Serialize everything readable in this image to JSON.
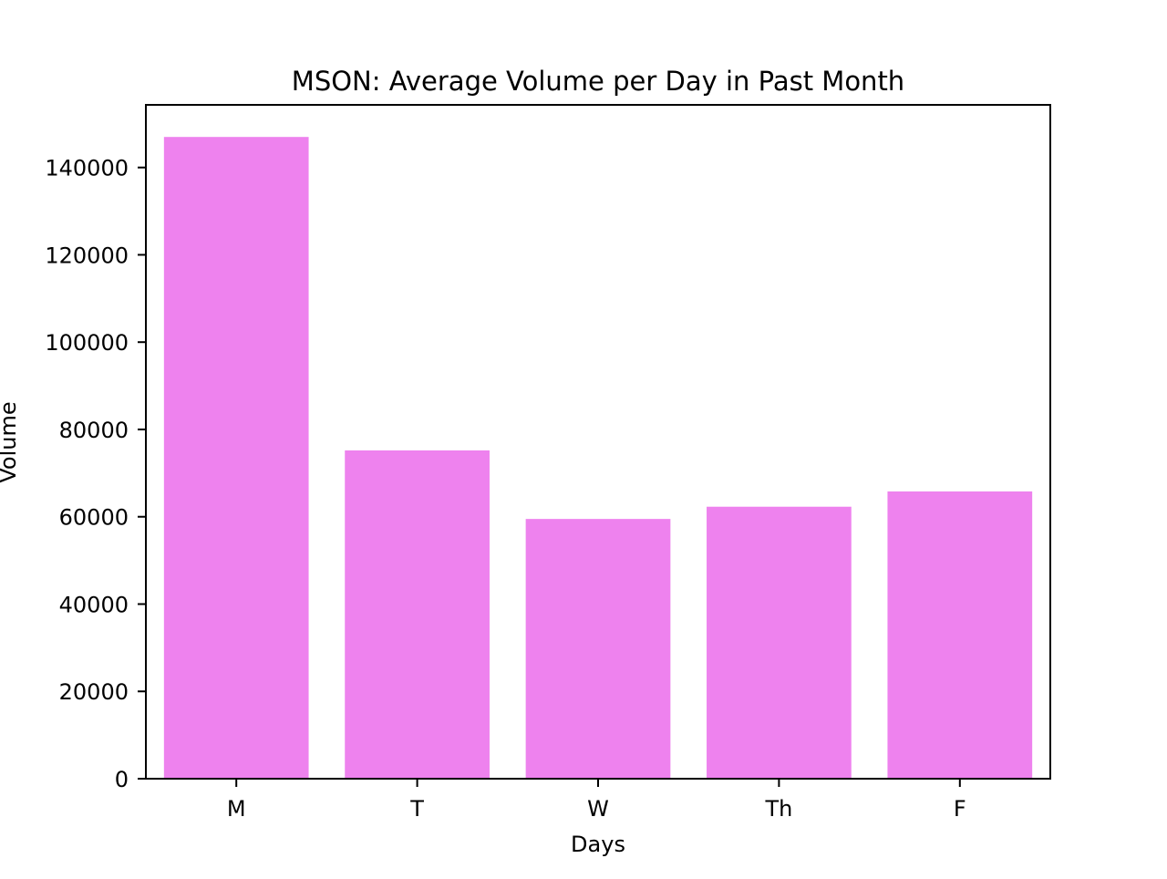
{
  "chart_data": {
    "type": "bar",
    "title": "MSON: Average Volume per Day in Past Month",
    "xlabel": "Days",
    "ylabel": "Volume",
    "categories": [
      "M",
      "T",
      "W",
      "Th",
      "F"
    ],
    "values": [
      147000,
      75200,
      59500,
      62300,
      65800
    ],
    "ylim": [
      0,
      154350
    ],
    "yticks": [
      0,
      20000,
      40000,
      60000,
      80000,
      100000,
      120000,
      140000
    ],
    "ytick_labels": [
      "0",
      "20000",
      "40000",
      "60000",
      "80000",
      "100000",
      "120000",
      "140000"
    ],
    "grid": false,
    "legend": "none",
    "bar_color": "#ee82ee"
  }
}
